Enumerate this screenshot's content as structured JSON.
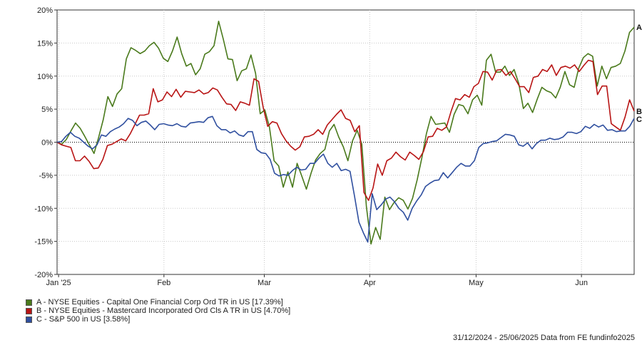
{
  "chart_data": {
    "type": "line",
    "y_tick_labels": [
      "20%",
      "15%",
      "10%",
      "5%",
      "0%",
      "-5%",
      "-10%",
      "-15%",
      "-20%"
    ],
    "y_ticks": [
      20,
      15,
      10,
      5,
      0,
      -5,
      -10,
      -15,
      -20
    ],
    "ylim": [
      -20,
      20
    ],
    "x_tick_labels": [
      "Jan '25",
      "Feb",
      "Mar",
      "Apr",
      "May",
      "Jun"
    ],
    "x_ticks": [
      0.3,
      21.3,
      41.3,
      62.3,
      83.5,
      104.5
    ],
    "xlim": [
      0,
      115
    ],
    "grid": true,
    "zero_line": "dotted",
    "series": [
      {
        "name": "A - NYSE Equities - Capital One Financial Corp Ord TR in US [17.39%]",
        "end_label": "A",
        "color": "#4a7a1c",
        "values": [
          0,
          -0.3,
          0.4,
          1.7,
          2.9,
          2.1,
          0.9,
          -0.4,
          -1.7,
          0.7,
          3.4,
          6.9,
          5.4,
          7.3,
          8.1,
          12.6,
          14.3,
          13.9,
          13.4,
          13.8,
          14.6,
          15.1,
          14.2,
          12.7,
          12.2,
          13.8,
          15.9,
          13.4,
          11.5,
          11.9,
          10.2,
          11.1,
          13.3,
          13.7,
          14.6,
          18.3,
          15.6,
          12.6,
          12.5,
          9.3,
          10.8,
          11.1,
          13.2,
          10.4,
          4.3,
          4.9,
          2.3,
          -2.8,
          -3.6,
          -6.8,
          -4.5,
          -6.8,
          -3.2,
          -5.1,
          -7.1,
          -4.7,
          -2.7,
          -1.7,
          -1.1,
          1.7,
          2.7,
          0.8,
          -0.7,
          -2.8,
          0.2,
          1.8,
          -0.3,
          -9.7,
          -15.4,
          -12.9,
          -14.7,
          -8.3,
          -10.2,
          -9.1,
          -8.4,
          -8.8,
          -10.1,
          -8.5,
          -5.7,
          -2.4,
          1.3,
          3.9,
          2.7,
          2.8,
          2.9,
          1.5,
          4.2,
          5.7,
          5.5,
          4.3,
          6.4,
          7.1,
          5.6,
          12.4,
          13.3,
          10.6,
          10.6,
          11.5,
          10.1,
          11.0,
          8.9,
          5.1,
          5.9,
          4.5,
          6.5,
          8.3,
          7.8,
          7.5,
          6.7,
          8.3,
          10.7,
          8.7,
          8.3,
          11.2,
          12.8,
          13.4,
          13.0,
          8.5,
          11.5,
          9.6,
          11.3,
          11.5,
          11.9,
          13.8,
          16.6,
          17.4
        ]
      },
      {
        "name": "B - NYSE Equities - Mastercard Incorporated Ord Cls A TR in US [4.70%]",
        "end_label": "B",
        "color": "#b81414",
        "values": [
          0,
          -0.4,
          -0.6,
          -0.8,
          -2.8,
          -2.8,
          -2.1,
          -2.9,
          -4.0,
          -3.9,
          -2.6,
          -0.5,
          -0.3,
          0.1,
          0.5,
          0.2,
          1.3,
          2.7,
          4.1,
          4.1,
          4.3,
          8.1,
          6.1,
          6.4,
          7.6,
          6.9,
          8.0,
          6.8,
          7.7,
          7.6,
          7.5,
          7.9,
          7.3,
          7.5,
          8.2,
          7.9,
          6.8,
          5.8,
          5.7,
          4.8,
          6.1,
          5.9,
          5.6,
          9.6,
          9.2,
          5.3,
          2.4,
          3.1,
          2.9,
          1.3,
          0.2,
          -0.6,
          -1.2,
          -0.7,
          0.8,
          0.9,
          1.2,
          1.9,
          1.2,
          2.6,
          3.4,
          4.2,
          4.9,
          3.6,
          3.3,
          1.6,
          2.5,
          -7.6,
          -8.8,
          -6.9,
          -3.3,
          -5.0,
          -2.8,
          -2.4,
          -1.5,
          -2.2,
          -2.7,
          -1.5,
          -2.0,
          -2.6,
          -1.4,
          0.8,
          0.9,
          2.1,
          1.8,
          2.3,
          4.6,
          6.6,
          6.4,
          7.2,
          6.8,
          8.4,
          8.9,
          10.7,
          10.6,
          9.4,
          10.9,
          11.0,
          10.1,
          10.7,
          9.6,
          8.4,
          8.4,
          7.5,
          9.8,
          10.0,
          11.0,
          10.7,
          11.7,
          10.1,
          11.3,
          11.5,
          11.2,
          11.7,
          10.7,
          11.6,
          12.4,
          12.2,
          7.2,
          8.5,
          8.5,
          2.8,
          2.3,
          1.8,
          3.8,
          6.4,
          4.7
        ]
      },
      {
        "name": "C - S&P 500 in US [3.58%]",
        "end_label": "C",
        "color": "#2f4f9f",
        "values": [
          0,
          0.1,
          0.9,
          1.5,
          0.9,
          0.6,
          0.0,
          -0.6,
          -1.0,
          -0.4,
          1.1,
          0.9,
          1.6,
          2.0,
          2.3,
          2.8,
          3.6,
          3.3,
          2.5,
          3.0,
          3.2,
          2.6,
          1.9,
          2.7,
          2.8,
          2.6,
          2.5,
          2.8,
          2.4,
          2.3,
          2.9,
          3.0,
          3.1,
          3.0,
          3.7,
          3.9,
          2.5,
          1.9,
          1.9,
          1.4,
          1.7,
          1.1,
          0.9,
          1.6,
          1.6,
          -1.1,
          -1.6,
          -1.7,
          -2.6,
          -4.7,
          -5.1,
          -4.9,
          -5.0,
          -4.3,
          -3.8,
          -4.2,
          -4.1,
          -3.2,
          -3.2,
          -2.4,
          -1.8,
          -3.2,
          -3.8,
          -3.2,
          -4.3,
          -4.1,
          -4.4,
          -8.1,
          -12.1,
          -13.7,
          -15.1,
          -7.8,
          -10.2,
          -9.5,
          -8.6,
          -8.3,
          -9.0,
          -10.0,
          -10.6,
          -11.8,
          -10.0,
          -8.9,
          -8.0,
          -6.7,
          -6.2,
          -5.8,
          -5.7,
          -4.6,
          -5.4,
          -4.6,
          -3.8,
          -3.2,
          -3.6,
          -3.6,
          -2.8,
          -0.8,
          -0.2,
          -0.1,
          0.1,
          0.2,
          0.7,
          1.2,
          1.1,
          0.9,
          -0.4,
          -0.6,
          -0.1,
          -1.0,
          -0.2,
          0.3,
          0.3,
          0.6,
          0.4,
          0.5,
          0.8,
          1.5,
          1.5,
          1.3,
          1.6,
          2.4,
          2.1,
          2.7,
          2.3,
          2.6,
          1.8,
          1.9,
          1.6,
          1.7,
          1.7,
          2.4,
          3.6
        ]
      }
    ]
  },
  "footer": {
    "source_text": "31/12/2024 - 25/06/2025 Data from FE fundinfo2025"
  },
  "colors": {
    "grid": "#c8c8c8",
    "axis": "#333333",
    "zero": "#000000"
  }
}
